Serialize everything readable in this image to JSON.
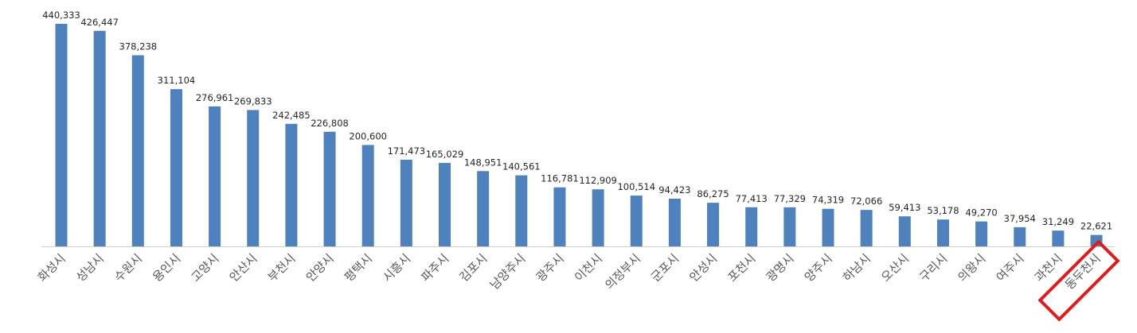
{
  "chart_data": {
    "type": "bar",
    "title": "",
    "xlabel": "",
    "ylabel": "",
    "categories": [
      "화성시",
      "성남시",
      "수원시",
      "용인시",
      "고양시",
      "안산시",
      "부천시",
      "안양시",
      "평택시",
      "시흥시",
      "파주시",
      "김포시",
      "남양주시",
      "광주시",
      "이천시",
      "의정부시",
      "군포시",
      "안성시",
      "포천시",
      "광명시",
      "양주시",
      "하남시",
      "오산시",
      "구리시",
      "의왕시",
      "여주시",
      "과천시",
      "동두천시"
    ],
    "values": [
      440333,
      426447,
      378238,
      311104,
      276961,
      269833,
      242485,
      226808,
      200600,
      171473,
      165029,
      148951,
      140561,
      116781,
      112909,
      100514,
      94423,
      86275,
      77413,
      77329,
      74319,
      72066,
      59413,
      53178,
      49270,
      37954,
      31249,
      22621
    ],
    "value_labels": [
      "440,333",
      "426,447",
      "378,238",
      "311,104",
      "276,961",
      "269,833",
      "242,485",
      "226,808",
      "200,600",
      "171,473",
      "165,029",
      "148,951",
      "140,561",
      "116,781",
      "112,909",
      "100,514",
      "94,423",
      "86,275",
      "77,413",
      "77,329",
      "74,319",
      "72,066",
      "59,413",
      "53,178",
      "49,270",
      "37,954",
      "31,249",
      "22,621"
    ],
    "ylim": [
      0,
      440333
    ],
    "highlight_category": "동두천시",
    "colors": {
      "bar": "#4f81bd",
      "highlight_box": "#e01b1b"
    }
  }
}
